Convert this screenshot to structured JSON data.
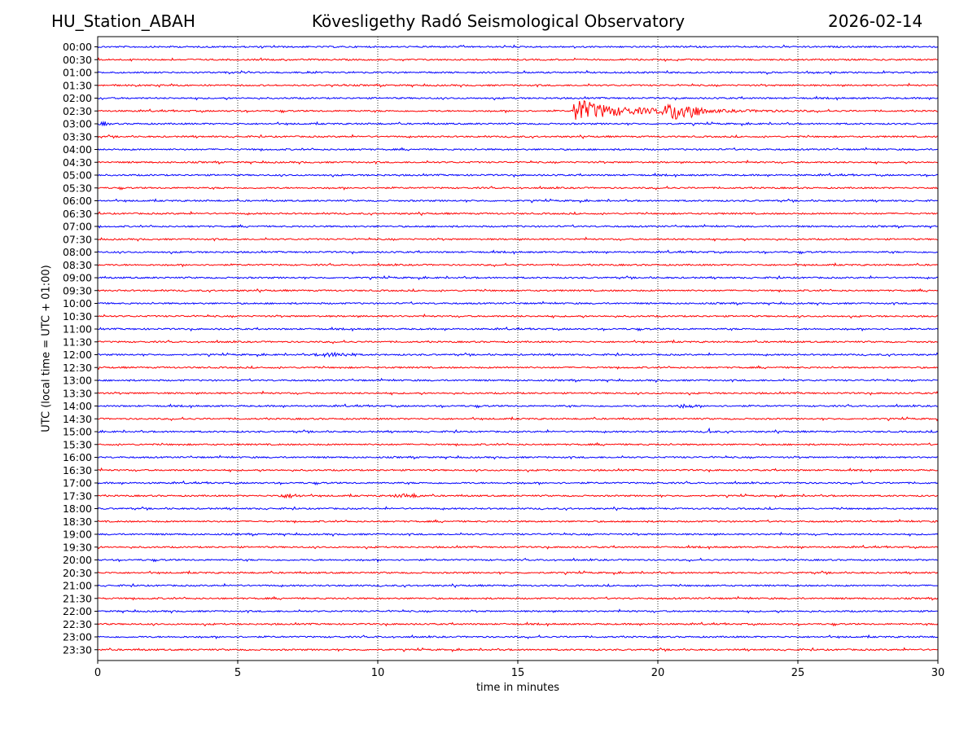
{
  "header": {
    "station": "HU_Station_ABAH",
    "observatory": "Kövesligethy Radó Seismological Observatory",
    "date": "2026-02-14"
  },
  "chart_data": {
    "type": "line",
    "title": "Kövesligethy Radó Seismological Observatory",
    "xlabel": "time in minutes",
    "ylabel": "UTC (local time = UTC + 01:00)",
    "xlim": [
      0,
      30
    ],
    "x_ticks": [
      0,
      5,
      10,
      15,
      20,
      25,
      30
    ],
    "grid": "vertical dotted at x ticks",
    "row_labels": [
      "00:00",
      "00:30",
      "01:00",
      "01:30",
      "02:00",
      "02:30",
      "03:00",
      "03:30",
      "04:00",
      "04:30",
      "05:00",
      "05:30",
      "06:00",
      "06:30",
      "07:00",
      "07:30",
      "08:00",
      "08:30",
      "09:00",
      "09:30",
      "10:00",
      "10:30",
      "11:00",
      "11:30",
      "12:00",
      "12:30",
      "13:00",
      "13:30",
      "14:00",
      "14:30",
      "15:00",
      "15:30",
      "16:00",
      "16:30",
      "17:00",
      "17:30",
      "18:00",
      "18:30",
      "19:00",
      "19:30",
      "20:00",
      "20:30",
      "21:00",
      "21:30",
      "22:00",
      "22:30",
      "23:00",
      "23:30"
    ],
    "trace_colors": [
      "#0000ff",
      "#ff0000"
    ],
    "events": [
      {
        "row": "02:30",
        "start_min": 17.0,
        "end_min": 30.0,
        "description": "earthquake: large onset at ~17.1 min, secondary bursts at ~20.5 and ~21.2 min, long coda"
      },
      {
        "row": "03:00",
        "start_min": 0.0,
        "end_min": 0.5,
        "description": "coda continuation"
      },
      {
        "row": "12:00",
        "start_min": 7.5,
        "end_min": 9.5,
        "description": "small burst"
      },
      {
        "row": "17:30",
        "start_min": 6.2,
        "end_min": 7.5,
        "description": "small burst"
      },
      {
        "row": "17:30",
        "start_min": 10.3,
        "end_min": 11.8,
        "description": "small burst"
      },
      {
        "row": "15:00",
        "start_min": 21.8,
        "end_min": 22.1,
        "description": "spike"
      },
      {
        "row": "14:00",
        "start_min": 20.5,
        "end_min": 21.5,
        "description": "small burst"
      }
    ]
  }
}
